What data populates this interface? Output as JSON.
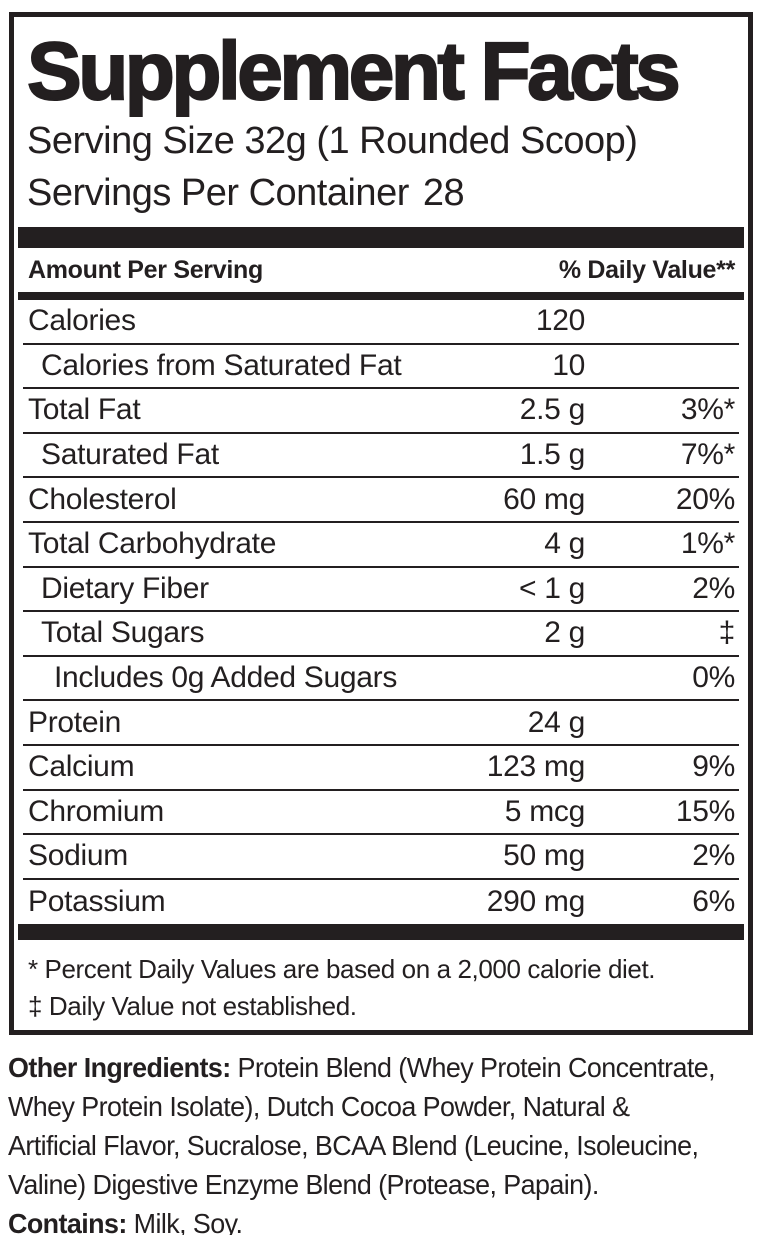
{
  "panel": {
    "title": "Supplement Facts",
    "serving_size": "Serving Size 32g (1 Rounded Scoop)",
    "servings_per_container": {
      "label": "Servings Per Container",
      "value": "28"
    },
    "columns": {
      "amount": "Amount Per Serving",
      "daily_value": "% Daily Value**"
    },
    "rows": [
      {
        "name": "Calories",
        "amount": "120",
        "dv": "",
        "indent": 0
      },
      {
        "name": "Calories from Saturated Fat",
        "amount": "10",
        "dv": "",
        "indent": 1
      },
      {
        "name": "Total Fat",
        "amount": "2.5 g",
        "dv": "3%*",
        "indent": 0
      },
      {
        "name": "Saturated Fat",
        "amount": "1.5 g",
        "dv": "7%*",
        "indent": 1
      },
      {
        "name": "Cholesterol",
        "amount": "60 mg",
        "dv": "20%",
        "indent": 0
      },
      {
        "name": "Total Carbohydrate",
        "amount": "4 g",
        "dv": "1%*",
        "indent": 0
      },
      {
        "name": "Dietary Fiber",
        "amount": "< 1 g",
        "dv": "2%",
        "indent": 1
      },
      {
        "name": "Total Sugars",
        "amount": "2 g",
        "dv": "‡",
        "indent": 1
      },
      {
        "name": "Includes 0g Added Sugars",
        "amount": "",
        "dv": "0%",
        "indent": 2
      },
      {
        "name": "Protein",
        "amount": "24 g",
        "dv": "",
        "indent": 0
      },
      {
        "name": "Calcium",
        "amount": "123 mg",
        "dv": "9%",
        "indent": 0
      },
      {
        "name": "Chromium",
        "amount": "5 mcg",
        "dv": "15%",
        "indent": 0
      },
      {
        "name": "Sodium",
        "amount": "50 mg",
        "dv": "2%",
        "indent": 0
      },
      {
        "name": "Potassium",
        "amount": "290 mg",
        "dv": "6%",
        "indent": 0
      }
    ],
    "footnotes": [
      "* Percent Daily Values are based on a 2,000 calorie diet.",
      "‡ Daily Value not established."
    ]
  },
  "ingredients": {
    "lines": [
      {
        "bold": "Other Ingredients:",
        "text": " Protein Blend (Whey Protein Concentrate,"
      },
      {
        "bold": "",
        "text": "Whey Protein Isolate), Dutch Cocoa Powder, Natural &"
      },
      {
        "bold": "",
        "text": "Artificial Flavor, Sucralose, BCAA Blend (Leucine, Isoleucine,"
      },
      {
        "bold": "",
        "text": "Valine) Digestive Enzyme Blend (Protease, Papain)."
      },
      {
        "bold": "Contains:",
        "text": " Milk, Soy."
      }
    ]
  },
  "colors": {
    "ink": "#231f20",
    "background": "#ffffff"
  }
}
